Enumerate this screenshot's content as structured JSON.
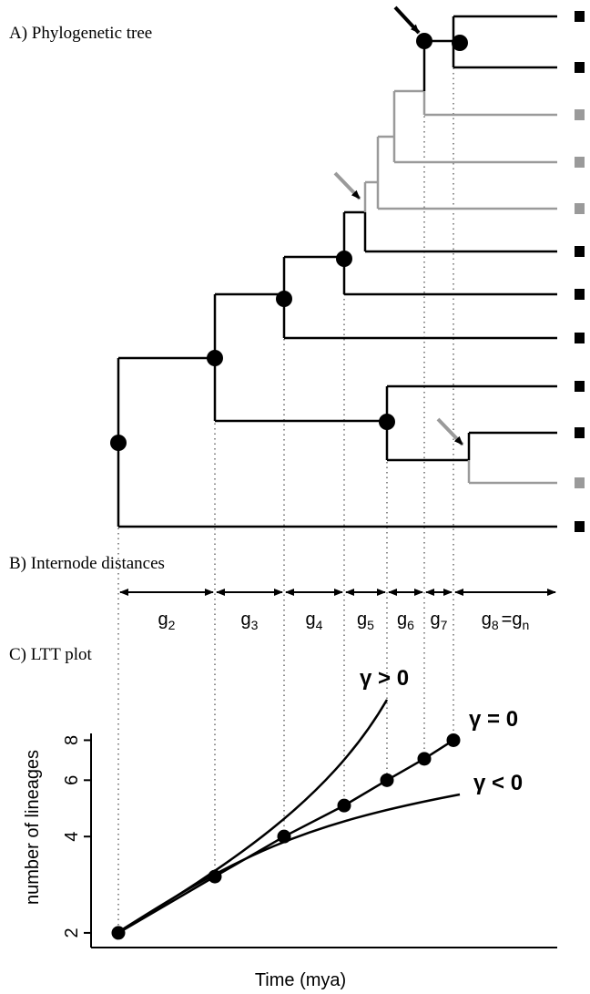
{
  "panel_a": {
    "label": "A) Phylogenetic tree"
  },
  "panel_b": {
    "label": "B) Internode distances",
    "gaps": [
      {
        "symbol": "g",
        "sub": "2"
      },
      {
        "symbol": "g",
        "sub": "3"
      },
      {
        "symbol": "g",
        "sub": "4"
      },
      {
        "symbol": "g",
        "sub": "5"
      },
      {
        "symbol": "g",
        "sub": "6"
      },
      {
        "symbol": "g",
        "sub": "7"
      },
      {
        "symbol": "g",
        "sub": "8",
        "equals": "=",
        "symbol2": "g",
        "sub2": "n"
      }
    ]
  },
  "panel_c": {
    "label": "C) LTT plot",
    "y_axis_label": "number of lineages",
    "x_axis_label": "Time (mya)",
    "scale": "log",
    "ylim": [
      1.8,
      8.4
    ],
    "yticks": [
      2,
      4,
      6,
      8
    ],
    "lineages": [
      2,
      3,
      4,
      5,
      6,
      7,
      8
    ],
    "curves": [
      "γ > 0",
      "γ = 0",
      "γ < 0"
    ]
  }
}
